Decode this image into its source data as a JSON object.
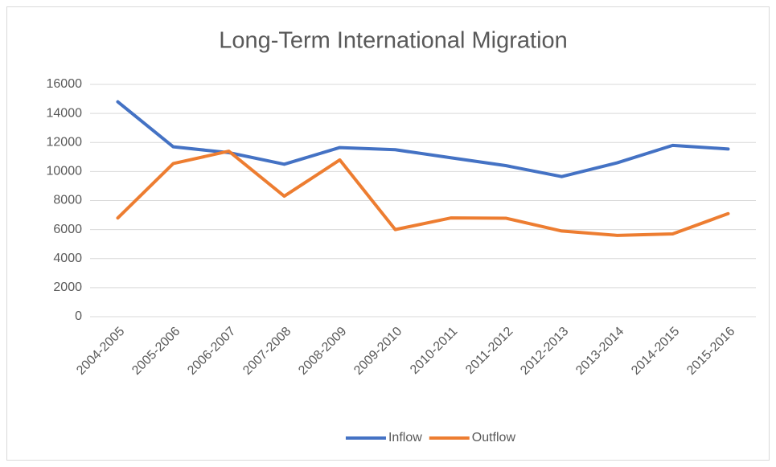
{
  "chart_data": {
    "type": "line",
    "title": "Long-Term International Migration",
    "categories": [
      "2004-2005",
      "2005-2006",
      "2006-2007",
      "2007-2008",
      "2008-2009",
      "2009-2010",
      "2010-2011",
      "2011-2012",
      "2012-2013",
      "2013-2014",
      "2014-2015",
      "2015-2016"
    ],
    "series": [
      {
        "name": "Inflow",
        "color": "#4472c4",
        "values": [
          14800,
          11700,
          11300,
          10500,
          11650,
          11500,
          10950,
          10400,
          9650,
          10600,
          11800,
          11550
        ]
      },
      {
        "name": "Outflow",
        "color": "#ed7d31",
        "values": [
          6800,
          10550,
          11400,
          8300,
          10800,
          6000,
          6800,
          6780,
          5900,
          5600,
          5700,
          7100
        ]
      }
    ],
    "ylim": [
      0,
      16000
    ],
    "yticks": [
      0,
      2000,
      4000,
      6000,
      8000,
      10000,
      12000,
      14000,
      16000
    ],
    "grid": true,
    "legend": "bottom"
  }
}
